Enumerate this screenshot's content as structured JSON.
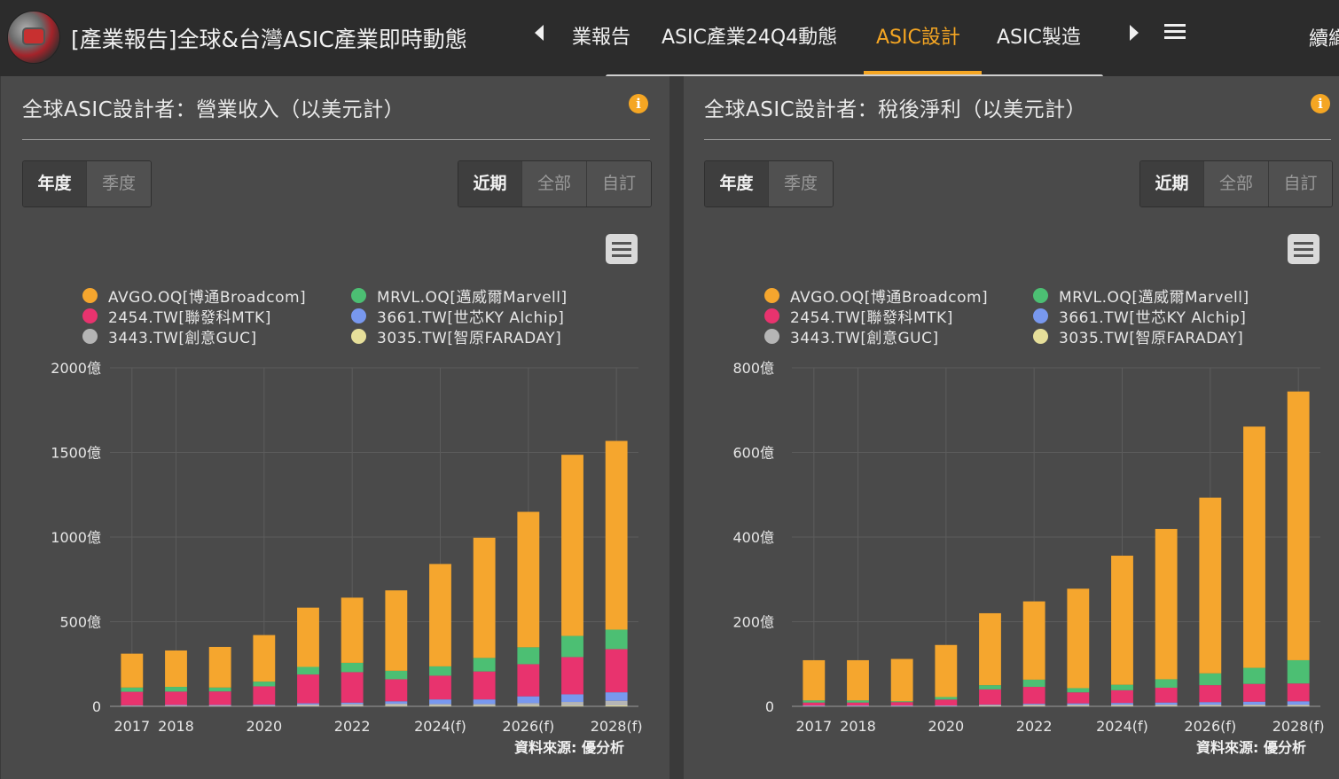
{
  "header": {
    "title": "[產業報告]全球&台灣ASIC產業即時動態",
    "tabs": [
      "業報告",
      "ASIC產業24Q4動態",
      "ASIC設計",
      "ASIC製造"
    ],
    "active_tab": 2,
    "overflow_tab": "續織"
  },
  "controls": {
    "freq_buttons": [
      "年度",
      "季度"
    ],
    "range_buttons": [
      "近期",
      "全部",
      "自訂"
    ]
  },
  "icons": {
    "logo": "app-logo",
    "info": "info-icon",
    "menu": "hamburger-menu-icon",
    "chart_menu": "chart-export-menu-icon"
  },
  "colors": {
    "accent": "#f5a623",
    "AVGO": "#f5a62e",
    "MRVL": "#4cbf73",
    "MTK": "#e8336e",
    "Alchip": "#7898ee",
    "GUC": "#b5b5b5",
    "FARADAY": "#e6df9a"
  },
  "charts": [
    {
      "title": "全球ASIC設計者：營業收入（以美元計）",
      "info": "i",
      "source": "資料來源: 優分析",
      "chart_data": {
        "type": "bar",
        "stacked": true,
        "categories": [
          "2017",
          "2018",
          "2019",
          "2020",
          "2021",
          "2022",
          "2023",
          "2024(f)",
          "2025(f)",
          "2026(f)",
          "2027(f)",
          "2028(f)"
        ],
        "tick_labels": {
          "0": "2017",
          "1": "2018",
          "3": "2020",
          "5": "2022",
          "7": "2024(f)",
          "9": "2026(f)",
          "11": "2028(f)"
        },
        "yticks": [
          {
            "v": 0,
            "label": "0"
          },
          {
            "v": 500,
            "label": "500億"
          },
          {
            "v": 1000,
            "label": "1000億"
          },
          {
            "v": 1500,
            "label": "1500億"
          },
          {
            "v": 2000,
            "label": "2000億"
          }
        ],
        "ylim": [
          0,
          2000
        ],
        "unit": "億",
        "grid": true,
        "legend_position": "top",
        "series": [
          {
            "name": "AVGO.OQ[博通Broadcom]",
            "color": "#f5a62e",
            "values": [
              200,
              215,
              240,
              275,
              350,
              385,
              475,
              605,
              710,
              800,
              1070,
              1115
            ]
          },
          {
            "name": "MRVL.OQ[邁威爾Marvell]",
            "color": "#4cbf73",
            "values": [
              25,
              28,
              23,
              28,
              45,
              55,
              50,
              55,
              80,
              100,
              125,
              115
            ]
          },
          {
            "name": "2454.TW[聯發科MTK]",
            "color": "#e8336e",
            "values": [
              80,
              79,
              80,
              108,
              170,
              180,
              130,
              140,
              165,
              190,
              220,
              255
            ]
          },
          {
            "name": "3661.TW[世芯KY Alchip]",
            "color": "#7898ee",
            "values": [
              2,
              3,
              3,
              4,
              7,
              8,
              14,
              27,
              27,
              40,
              45,
              50
            ]
          },
          {
            "name": "3443.TW[創意GUC]",
            "color": "#b5b5b5",
            "values": [
              3,
              4,
              4,
              5,
              9,
              12,
              13,
              11,
              11,
              15,
              22,
              28
            ]
          },
          {
            "name": "3035.TW[智原FARADAY]",
            "color": "#e6df9a",
            "values": [
              1,
              1,
              1,
              1,
              2,
              2,
              3,
              3,
              3,
              4,
              4,
              5
            ]
          }
        ]
      }
    },
    {
      "title": "全球ASIC設計者：稅後淨利（以美元計）",
      "info": "i",
      "source": "資料來源: 優分析",
      "chart_data": {
        "type": "bar",
        "stacked": true,
        "categories": [
          "2017",
          "2018",
          "2019",
          "2020",
          "2021",
          "2022",
          "2023",
          "2024(f)",
          "2025(f)",
          "2026(f)",
          "2027(f)",
          "2028(f)"
        ],
        "tick_labels": {
          "0": "2017",
          "1": "2018",
          "3": "2020",
          "5": "2022",
          "7": "2024(f)",
          "9": "2026(f)",
          "11": "2028(f)"
        },
        "yticks": [
          {
            "v": 0,
            "label": "0"
          },
          {
            "v": 200,
            "label": "200億"
          },
          {
            "v": 400,
            "label": "400億"
          },
          {
            "v": 600,
            "label": "600億"
          },
          {
            "v": 800,
            "label": "800億"
          }
        ],
        "ylim": [
          0,
          800
        ],
        "unit": "億",
        "grid": true,
        "legend_position": "top",
        "series": [
          {
            "name": "AVGO.OQ[博通Broadcom]",
            "color": "#f5a62e",
            "values": [
              95,
              95,
              100,
              123,
              170,
              185,
              235,
              305,
              355,
              415,
              570,
              635
            ]
          },
          {
            "name": "MRVL.OQ[邁威爾Marvell]",
            "color": "#4cbf73",
            "values": [
              5,
              5,
              2,
              6,
              10,
              17,
              10,
              13,
              20,
              28,
              38,
              55
            ]
          },
          {
            "name": "2454.TW[聯發科MTK]",
            "color": "#e8336e",
            "values": [
              7,
              7,
              8,
              14,
              36,
              40,
              26,
              30,
              35,
              40,
              42,
              42
            ]
          },
          {
            "name": "3661.TW[世芯KY Alchip]",
            "color": "#7898ee",
            "values": [
              1,
              1,
              1,
              1,
              1,
              2,
              3,
              4,
              5,
              6,
              7,
              8
            ]
          },
          {
            "name": "3443.TW[創意GUC]",
            "color": "#b5b5b5",
            "values": [
              1,
              1,
              1,
              1,
              2,
              3,
              3,
              3,
              3,
              3,
              3,
              3
            ]
          },
          {
            "name": "3035.TW[智原FARADAY]",
            "color": "#e6df9a",
            "values": [
              0,
              0,
              0,
              0,
              1,
              1,
              1,
              1,
              1,
              1,
              1,
              1
            ]
          }
        ]
      }
    }
  ]
}
